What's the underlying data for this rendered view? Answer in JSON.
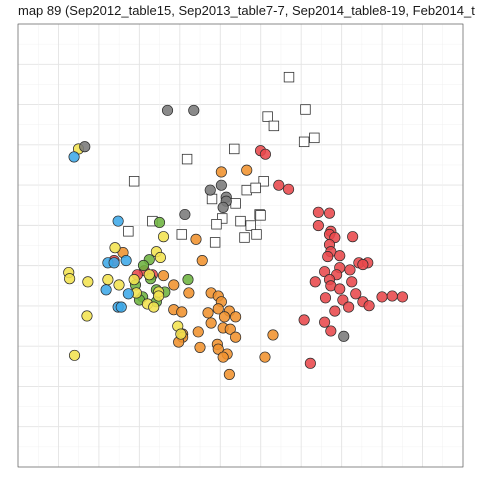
{
  "chart_data": {
    "type": "scatter",
    "title": "map 89 (Sep2012_table15, Sep2013_table7-7, Sep2014_table8-19, Feb2014_t",
    "xlabel": "",
    "ylabel": "",
    "xlim": [
      0,
      100
    ],
    "ylim": [
      0,
      100
    ],
    "grid": true,
    "legend": "none",
    "series": [
      {
        "color": "#e8484b",
        "marker": "circle",
        "points": [
          [
            54.5,
            71.4
          ],
          [
            55.6,
            70.6
          ],
          [
            58.6,
            63.6
          ],
          [
            60.8,
            62.7
          ],
          [
            67.5,
            57.5
          ],
          [
            70.0,
            57.3
          ],
          [
            67.5,
            54.5
          ],
          [
            70.3,
            53.2
          ],
          [
            70.0,
            52.5
          ],
          [
            75.2,
            52.0
          ],
          [
            71.2,
            51.8
          ],
          [
            70.0,
            50.2
          ],
          [
            70.3,
            48.6
          ],
          [
            69.6,
            47.5
          ],
          [
            72.3,
            47.7
          ],
          [
            76.6,
            46.1
          ],
          [
            78.6,
            46.1
          ],
          [
            77.5,
            45.7
          ],
          [
            72.3,
            45.0
          ],
          [
            74.6,
            44.5
          ],
          [
            68.9,
            44.1
          ],
          [
            71.6,
            43.4
          ],
          [
            66.8,
            41.8
          ],
          [
            70.0,
            42.3
          ],
          [
            75.0,
            41.8
          ],
          [
            70.3,
            40.9
          ],
          [
            72.3,
            40.2
          ],
          [
            75.9,
            39.1
          ],
          [
            84.1,
            38.6
          ],
          [
            81.8,
            38.4
          ],
          [
            86.4,
            38.4
          ],
          [
            69.1,
            38.2
          ],
          [
            73.0,
            37.7
          ],
          [
            77.5,
            37.3
          ],
          [
            71.2,
            35.2
          ],
          [
            74.3,
            36.1
          ],
          [
            78.9,
            36.4
          ],
          [
            64.3,
            33.2
          ],
          [
            68.9,
            32.7
          ],
          [
            70.3,
            30.7
          ],
          [
            65.7,
            23.4
          ],
          [
            21.6,
            46.6
          ],
          [
            28.4,
            44.3
          ],
          [
            26.8,
            43.4
          ],
          [
            30.2,
            43.4
          ]
        ]
      },
      {
        "color": "#f0922e",
        "marker": "circle",
        "points": [
          [
            45.7,
            66.6
          ],
          [
            51.4,
            67.0
          ],
          [
            40.0,
            51.4
          ],
          [
            23.6,
            48.4
          ],
          [
            41.4,
            46.6
          ],
          [
            32.7,
            43.2
          ],
          [
            35.0,
            41.1
          ],
          [
            43.4,
            39.3
          ],
          [
            38.4,
            39.3
          ],
          [
            45.0,
            38.6
          ],
          [
            45.7,
            37.3
          ],
          [
            35.0,
            35.5
          ],
          [
            45.0,
            35.7
          ],
          [
            47.5,
            35.2
          ],
          [
            36.8,
            35.0
          ],
          [
            42.7,
            34.8
          ],
          [
            46.4,
            33.9
          ],
          [
            48.9,
            33.9
          ],
          [
            43.4,
            32.5
          ],
          [
            46.1,
            31.4
          ],
          [
            47.7,
            31.1
          ],
          [
            37.0,
            30.0
          ],
          [
            40.5,
            30.5
          ],
          [
            48.9,
            29.3
          ],
          [
            57.3,
            29.8
          ],
          [
            44.8,
            27.7
          ],
          [
            45.0,
            26.6
          ],
          [
            37.0,
            29.3
          ],
          [
            36.1,
            28.2
          ],
          [
            40.9,
            27.0
          ],
          [
            47.0,
            25.5
          ],
          [
            46.1,
            24.8
          ],
          [
            55.5,
            24.8
          ],
          [
            47.5,
            20.9
          ]
        ]
      },
      {
        "color": "#6db33f",
        "marker": "circle",
        "points": [
          [
            31.8,
            55.2
          ],
          [
            29.5,
            46.8
          ],
          [
            28.2,
            45.5
          ],
          [
            29.8,
            42.5
          ],
          [
            38.2,
            42.3
          ],
          [
            26.4,
            41.1
          ],
          [
            31.1,
            40.0
          ],
          [
            33.0,
            39.5
          ],
          [
            28.0,
            38.4
          ],
          [
            27.3,
            37.7
          ],
          [
            31.1,
            37.3
          ]
        ]
      },
      {
        "color": "#3ea9e8",
        "marker": "circle",
        "points": [
          [
            12.6,
            70.0
          ],
          [
            22.5,
            55.5
          ],
          [
            24.3,
            46.6
          ],
          [
            20.2,
            46.1
          ],
          [
            21.6,
            46.1
          ],
          [
            19.8,
            40.0
          ],
          [
            24.8,
            39.1
          ],
          [
            22.5,
            36.1
          ],
          [
            23.2,
            36.1
          ]
        ]
      },
      {
        "color": "#f2e350",
        "marker": "circle",
        "points": [
          [
            13.6,
            71.8
          ],
          [
            32.7,
            52.0
          ],
          [
            21.8,
            49.5
          ],
          [
            31.1,
            48.6
          ],
          [
            32.0,
            47.3
          ],
          [
            29.5,
            43.4
          ],
          [
            11.4,
            43.9
          ],
          [
            11.6,
            42.5
          ],
          [
            15.7,
            41.8
          ],
          [
            20.2,
            42.3
          ],
          [
            26.1,
            42.3
          ],
          [
            22.7,
            41.1
          ],
          [
            26.6,
            39.3
          ],
          [
            31.6,
            39.5
          ],
          [
            31.6,
            38.6
          ],
          [
            29.1,
            36.8
          ],
          [
            30.5,
            36.1
          ],
          [
            15.5,
            34.1
          ],
          [
            35.9,
            31.8
          ],
          [
            36.6,
            30.0
          ],
          [
            12.7,
            25.2
          ]
        ]
      },
      {
        "color": "#7a7a7a",
        "marker": "circle",
        "points": [
          [
            33.6,
            80.5
          ],
          [
            39.5,
            80.5
          ],
          [
            15.0,
            72.3
          ],
          [
            43.2,
            62.5
          ],
          [
            45.7,
            63.6
          ],
          [
            46.8,
            60.9
          ],
          [
            46.8,
            60.0
          ],
          [
            46.1,
            58.6
          ],
          [
            37.5,
            57.0
          ],
          [
            73.2,
            29.5
          ]
        ]
      },
      {
        "color": "#ffffff",
        "marker": "square",
        "points": [
          [
            60.9,
            88.0
          ],
          [
            64.6,
            80.7
          ],
          [
            56.1,
            79.1
          ],
          [
            57.5,
            77.0
          ],
          [
            66.6,
            74.3
          ],
          [
            64.3,
            73.4
          ],
          [
            48.6,
            71.8
          ],
          [
            38.0,
            69.5
          ],
          [
            26.1,
            64.5
          ],
          [
            55.2,
            64.5
          ],
          [
            51.4,
            62.5
          ],
          [
            53.4,
            63.0
          ],
          [
            43.6,
            60.5
          ],
          [
            48.9,
            59.5
          ],
          [
            54.3,
            57.0
          ],
          [
            54.5,
            56.8
          ],
          [
            30.2,
            55.5
          ],
          [
            45.9,
            56.1
          ],
          [
            50.0,
            55.5
          ],
          [
            44.6,
            54.8
          ],
          [
            52.3,
            54.5
          ],
          [
            24.8,
            53.2
          ],
          [
            36.8,
            52.5
          ],
          [
            53.6,
            52.5
          ],
          [
            50.9,
            51.8
          ],
          [
            44.3,
            50.7
          ]
        ]
      }
    ]
  }
}
